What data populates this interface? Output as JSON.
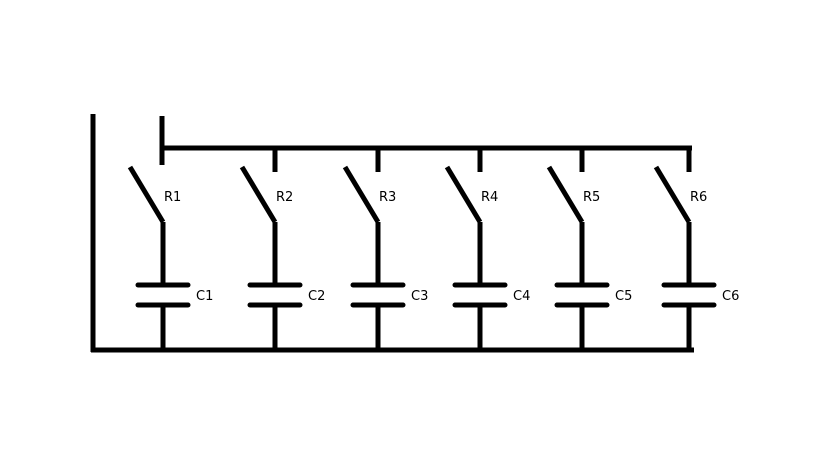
{
  "diagram": {
    "switch_labels": [
      "R1",
      "R2",
      "R3",
      "R4",
      "R5",
      "R6"
    ],
    "capacitor_labels": [
      "C1",
      "C2",
      "C3",
      "C4",
      "C5",
      "C6"
    ]
  }
}
